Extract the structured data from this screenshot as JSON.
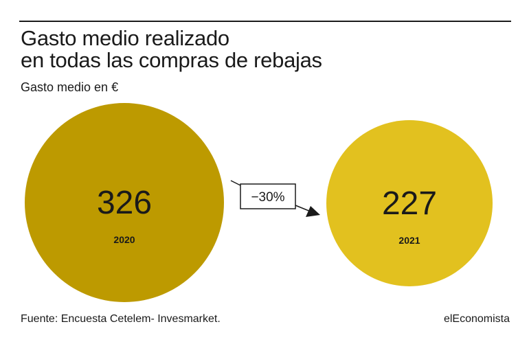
{
  "title_lines": [
    "Gasto medio realizado",
    "en todas las compras de rebajas"
  ],
  "subtitle": "Gasto medio en €",
  "source": "Fuente: Encuesta Cetelem- Invesmarket.",
  "brand": "elEconomista",
  "colors": {
    "bubble_2020": "#BD9A00",
    "bubble_2021": "#E2C11F",
    "text": "#1a1a1a"
  },
  "change_label": "−30%",
  "chart_data": {
    "type": "bubble",
    "categories": [
      "2020",
      "2021"
    ],
    "values": [
      326,
      227
    ],
    "title": "Gasto medio realizado en todas las compras de rebajas",
    "ylabel": "Gasto medio en €",
    "annotations": [
      "−30%"
    ]
  }
}
